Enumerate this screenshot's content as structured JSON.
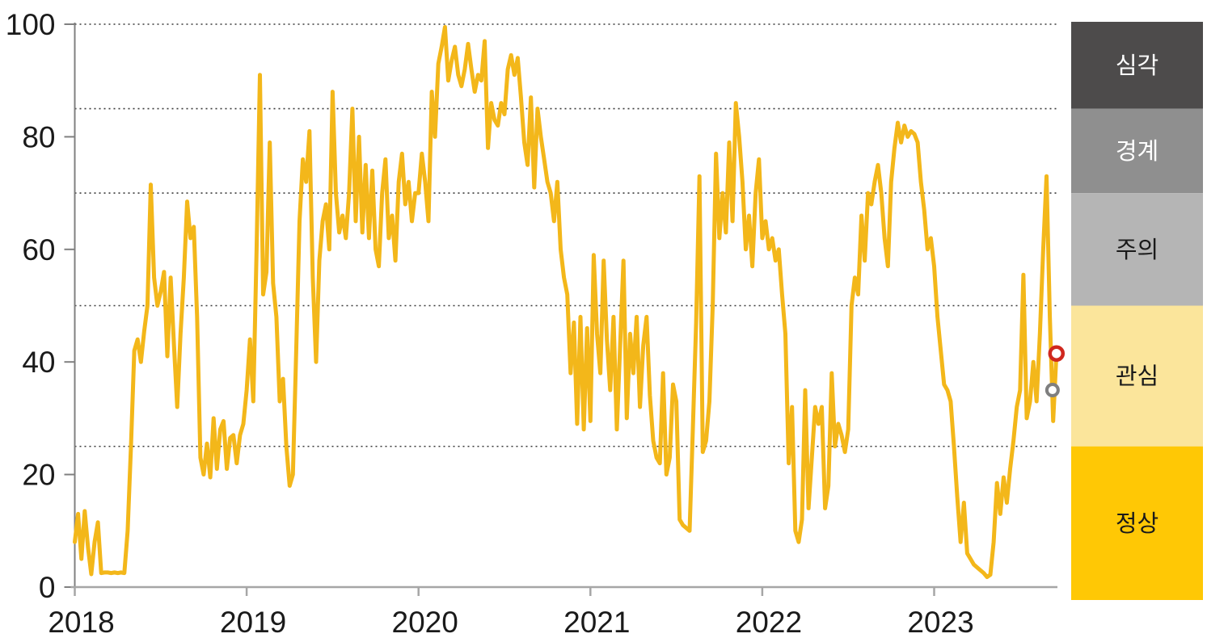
{
  "chart_data": {
    "type": "line",
    "title": "",
    "x_axis": {
      "tick_labels": [
        "2018",
        "2019",
        "2020",
        "2021",
        "2022",
        "2023"
      ],
      "start_year": 2018,
      "points_per_year": 52
    },
    "y_axis": {
      "ticks": [
        "0",
        "20",
        "40",
        "60",
        "80",
        "100"
      ],
      "tick_values": [
        0,
        20,
        40,
        60,
        80,
        100
      ],
      "range": [
        0,
        100
      ],
      "dotted_gridlines": [
        100,
        85,
        70,
        50,
        25
      ],
      "grid": "dotted horizontal lines at risk-band thresholds"
    },
    "series": {
      "color": "#F3B71A",
      "line_width": 5,
      "values": [
        8,
        13,
        5,
        13.5,
        7,
        2.3,
        8,
        11.5,
        2.5,
        2.6,
        2.6,
        2.5,
        2.6,
        2.5,
        2.6,
        2.5,
        10,
        25,
        42,
        44,
        40,
        45.5,
        50,
        71.5,
        55,
        50,
        52.5,
        56,
        41,
        55,
        43,
        32,
        45,
        55,
        68.5,
        62,
        64,
        48,
        23,
        20,
        25.5,
        19.5,
        30,
        21,
        28,
        29.5,
        21,
        26.5,
        27,
        22,
        27,
        29,
        35,
        44,
        33,
        60,
        91,
        52,
        56,
        79,
        54,
        48,
        33,
        37,
        25,
        18,
        20,
        42,
        65,
        76,
        72,
        81,
        55,
        40,
        58,
        65,
        68,
        60,
        88,
        70,
        63,
        66,
        62,
        70,
        85,
        65,
        80,
        63,
        75,
        62,
        74,
        60,
        57,
        70,
        76,
        62,
        66,
        58,
        72,
        77,
        68,
        72,
        65,
        70,
        70,
        77,
        72,
        65,
        88,
        80,
        93,
        96,
        99.5,
        90,
        93.5,
        96,
        91,
        89,
        92,
        96.5,
        92,
        88,
        91,
        90,
        97,
        78,
        86,
        83,
        82,
        86,
        84,
        92,
        94.5,
        91,
        94,
        87,
        79,
        75,
        87,
        71,
        85,
        80,
        76,
        72,
        70,
        65,
        72,
        60,
        55,
        52,
        38,
        47,
        29,
        48,
        28,
        46,
        29.5,
        59,
        45,
        38,
        58,
        44,
        35,
        48,
        28,
        43,
        58,
        30,
        45,
        38,
        48,
        32,
        43,
        48,
        34,
        26,
        23,
        22,
        38,
        20,
        23,
        36,
        33,
        12,
        11,
        10.5,
        10,
        28,
        47,
        73,
        24,
        26,
        33,
        50,
        77,
        62,
        70,
        63,
        79,
        65,
        86,
        80,
        72,
        60,
        66,
        57,
        70,
        76,
        62,
        65,
        60,
        62,
        58,
        60,
        52,
        45,
        22,
        32,
        10,
        8,
        12,
        35,
        14,
        23,
        32,
        29,
        32,
        14,
        18,
        38,
        25,
        29,
        27,
        24,
        28,
        50,
        55,
        52,
        66,
        58,
        70,
        68,
        72,
        75,
        70,
        62,
        57,
        72,
        78,
        82.5,
        79,
        82,
        80,
        81,
        80.5,
        79,
        72,
        67,
        60,
        62,
        57,
        48,
        42,
        36,
        35,
        33,
        25,
        16,
        8,
        15,
        6,
        5,
        4,
        3.5,
        3,
        2.5,
        1.8,
        2.2,
        8,
        18.5,
        13,
        19.5,
        15,
        21,
        26,
        32,
        35,
        55.5,
        30,
        33,
        40,
        33,
        45,
        60,
        73,
        48,
        29.5,
        41.5
      ]
    },
    "markers": [
      {
        "name": "latest-point-marker",
        "index": 297,
        "value": 41.5,
        "stroke": "#D0281E",
        "radius": 8,
        "stroke_width": 4.5
      },
      {
        "name": "previous-point-marker",
        "index": 295.8,
        "value": 35,
        "stroke": "#7F7F7F",
        "radius": 7,
        "stroke_width": 4
      }
    ],
    "legend_bands": [
      {
        "label": "심각",
        "range": [
          85,
          100
        ],
        "color": "#4D4B4B",
        "text_color": "#FFFFFF"
      },
      {
        "label": "경계",
        "range": [
          70,
          85
        ],
        "color": "#8F8F8F",
        "text_color": "#FFFFFF"
      },
      {
        "label": "주의",
        "range": [
          50,
          70
        ],
        "color": "#B5B5B5",
        "text_color": "#1A1A1A"
      },
      {
        "label": "관심",
        "range": [
          25,
          50
        ],
        "color": "#FBE59B",
        "text_color": "#1A1A1A"
      },
      {
        "label": "정상",
        "range": [
          0,
          25
        ],
        "color": "#FFC805",
        "text_color": "#1A1A1A"
      }
    ],
    "legend_position": "right column of stacked colored bands",
    "axis_colors": {
      "y_axis_line": "#808080",
      "x_axis_line": "#A6A6A6",
      "gridline": "#3a3a3a"
    }
  }
}
